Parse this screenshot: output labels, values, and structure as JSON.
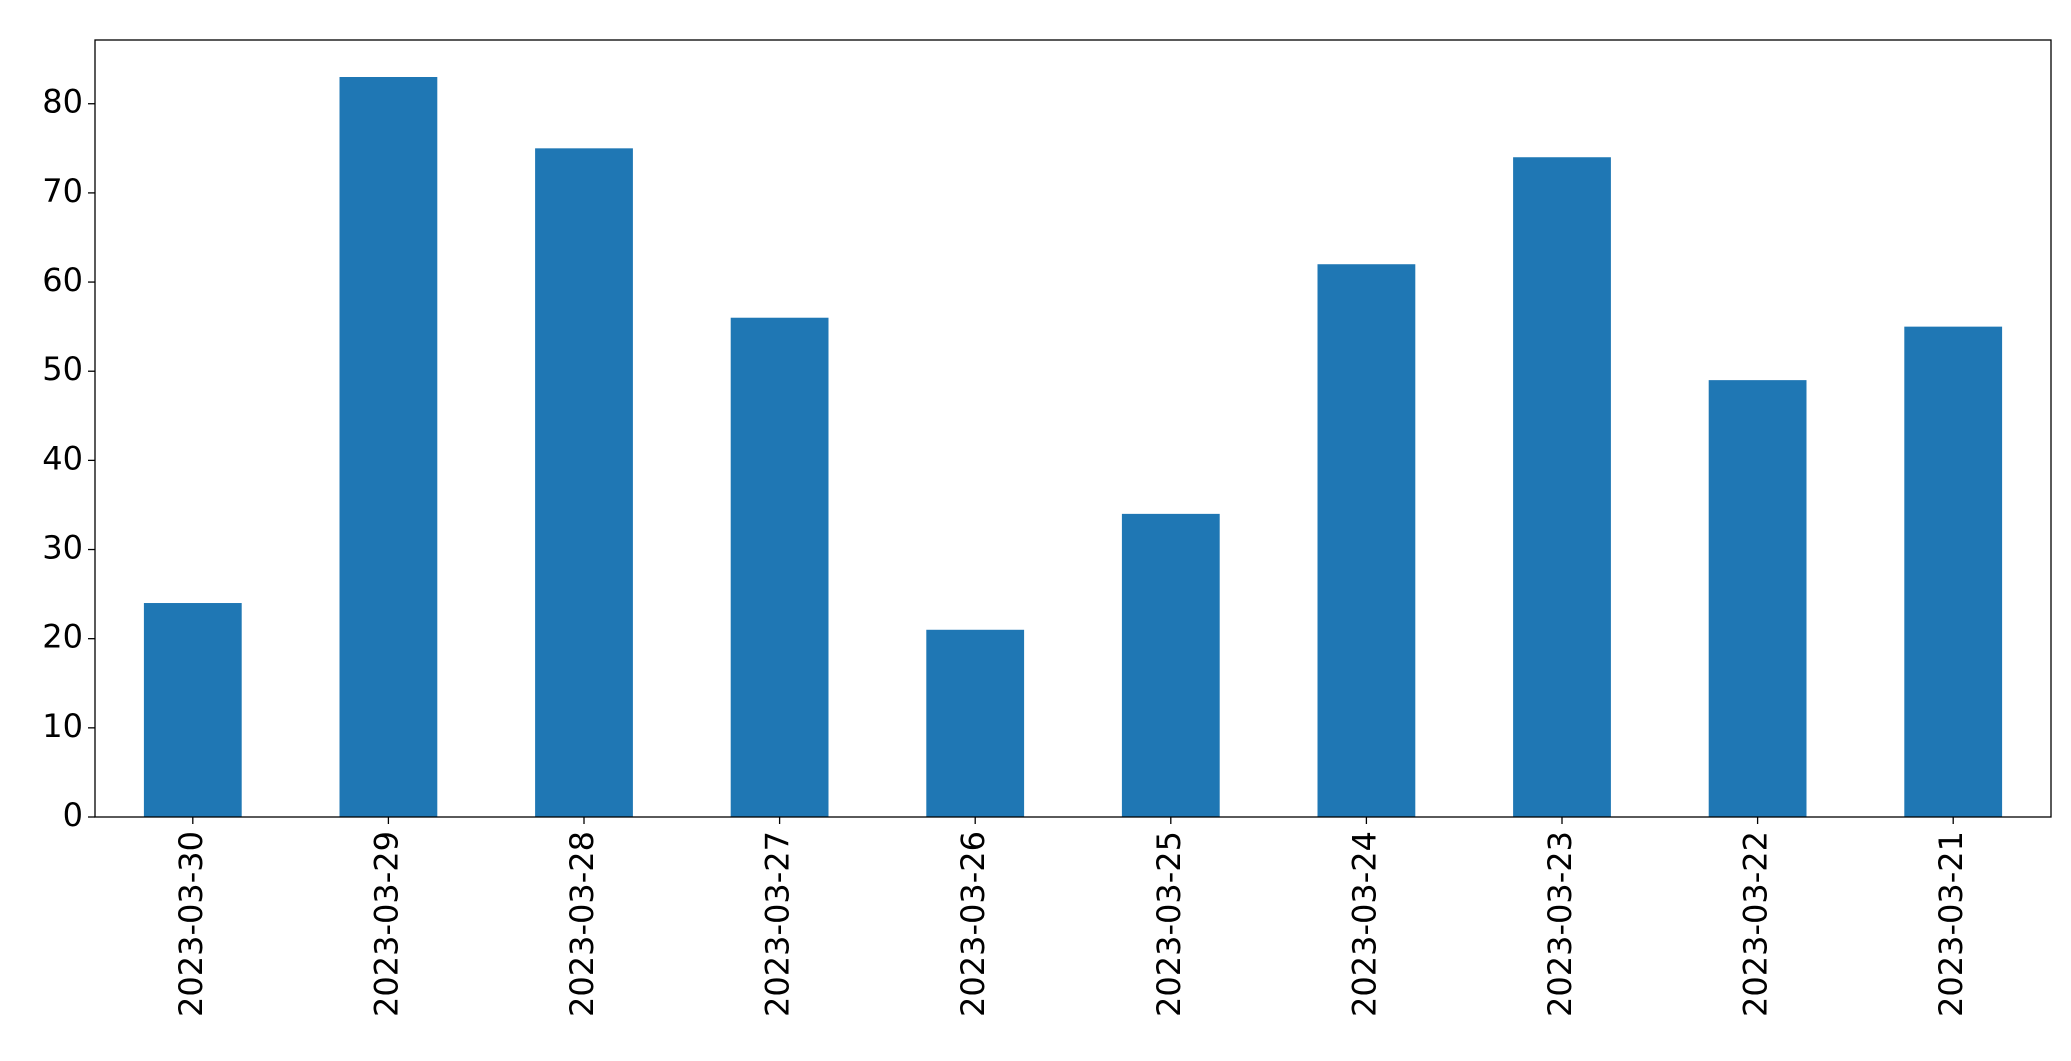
{
  "chart_data": {
    "type": "bar",
    "categories": [
      "2023-03-30",
      "2023-03-29",
      "2023-03-28",
      "2023-03-27",
      "2023-03-26",
      "2023-03-25",
      "2023-03-24",
      "2023-03-23",
      "2023-03-22",
      "2023-03-21"
    ],
    "values": [
      24,
      83,
      75,
      56,
      21,
      34,
      62,
      74,
      49,
      55
    ],
    "color": "#1f77b4",
    "ylim": [
      0,
      87.15
    ],
    "yticks": [
      0,
      10,
      20,
      30,
      40,
      50,
      60,
      70,
      80
    ],
    "grid": false
  }
}
